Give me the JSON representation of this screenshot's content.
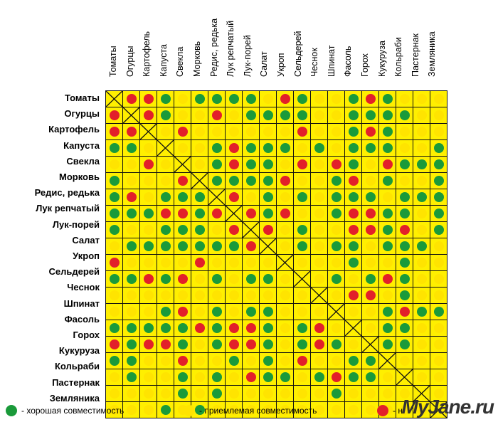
{
  "plants": [
    "Томаты",
    "Огурцы",
    "Картофель",
    "Капуста",
    "Свекла",
    "Морковь",
    "Редис, редька",
    "Лук репчатый",
    "Лук-порей",
    "Салат",
    "Укроп",
    "Сельдерей",
    "Чеснок",
    "Шпинат",
    "Фасоль",
    "Горох",
    "Кукуруза",
    "Кольраби",
    "Пастернак",
    "Земляника"
  ],
  "colors": {
    "good": "#1a9a3a",
    "ok": "#ffe400",
    "bad": "#e2202a",
    "cell_bg": "#ffef00"
  },
  "matrix": [
    "XRRGYGGGGYRGYYGRGYYY",
    "RXRGYYRYGGGGYYGGGGYY",
    "RRXYRYYYYYYRYYGRGYYY",
    "GGYXYYGRGGGYGYGGGYYG",
    "YYRYXYGRGGYRYRGYRGGG",
    "GYYYRXGGGGRYYGRYGYYG",
    "GRYGGGXRYGYGYGGGYGGG",
    "GGGRRGRXRGRYYGRRGGYG",
    "GYYGGGYRXRYGYYRRGRYG",
    "YGGGGGGGRXYGYGGYGGGY",
    "RYYYYRYYYYXYYYGYYGYY",
    "GGRGRYGYGGYXYGYGRGYY",
    "YYYYYYYYYYYYXYRRYGYY",
    "YYYGRYGYGGYYYXYYGRGG",
    "GGGGGRGRRGYGRYXYGGYY",
    "RGRRGYGRRGYGRGYXGGYY",
    "GGYYRYYGYGYRYYGGXYYY",
    "YGYYGYGYRGGYGRGGYXYY",
    "YYYYGYGYYYYYYGYYYYXY",
    "YYYGYGYYYYYYYYYYYYYX"
  ],
  "legend": {
    "good": "- хорошая совместимость",
    "ok": "- приемлемая совместимость",
    "bad": "- н"
  },
  "watermark": "MyJane.ru"
}
